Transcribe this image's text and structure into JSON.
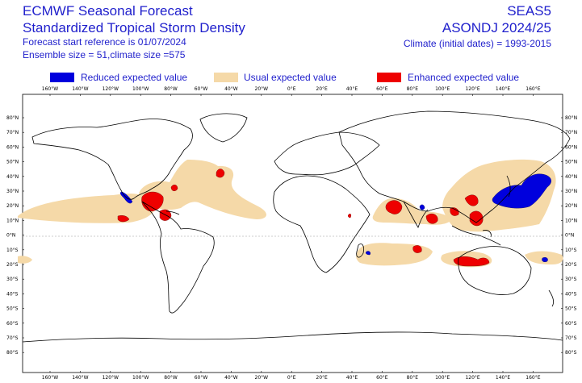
{
  "header": {
    "title_line1": "ECMWF Seasonal Forecast",
    "title_line2": "Standardized Tropical Storm Density",
    "start_ref": "Forecast start reference is 01/07/2024",
    "ensemble": "Ensemble size = 51,climate size =575",
    "system": "SEAS5",
    "period": "ASONDJ 2024/25",
    "climate": "Climate (initial dates) = 1993-2015"
  },
  "legend": [
    {
      "label": "Reduced expected value",
      "color": "#0000dd"
    },
    {
      "label": "Usual expected value",
      "color": "#f5d9a8"
    },
    {
      "label": "Enhanced expected value",
      "color": "#ee0000"
    }
  ],
  "axes": {
    "lon_labels": [
      "160°W",
      "140°W",
      "120°W",
      "100°W",
      "80°W",
      "60°W",
      "40°W",
      "20°W",
      "0°E",
      "20°E",
      "40°E",
      "60°E",
      "80°E",
      "100°E",
      "120°E",
      "140°E",
      "160°E"
    ],
    "lat_labels": [
      "80°N",
      "70°N",
      "60°N",
      "50°N",
      "40°N",
      "30°N",
      "20°N",
      "10°N",
      "0°N",
      "10°S",
      "20°S",
      "30°S",
      "40°S",
      "50°S",
      "60°S",
      "70°S",
      "80°S"
    ]
  }
}
